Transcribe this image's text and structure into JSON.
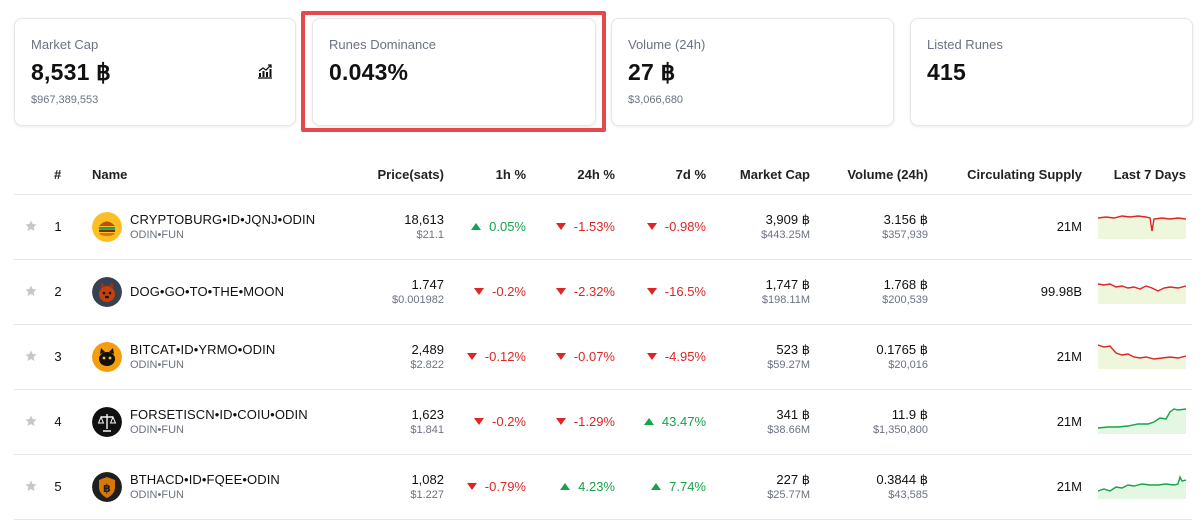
{
  "stats": {
    "market_cap": {
      "label": "Market Cap",
      "value": "8,531 ฿",
      "sub": "$967,389,553",
      "icon": "chart-icon"
    },
    "dominance": {
      "label": "Runes Dominance",
      "value": "0.043%"
    },
    "volume": {
      "label": "Volume (24h)",
      "value": "27 ฿",
      "sub": "$3,066,680"
    },
    "listed": {
      "label": "Listed Runes",
      "value": "415"
    }
  },
  "table": {
    "headers": {
      "rank": "#",
      "name": "Name",
      "price": "Price(sats)",
      "h1": "1h %",
      "h24": "24h %",
      "d7": "7d %",
      "mcap": "Market Cap",
      "volume": "Volume (24h)",
      "supply": "Circulating Supply",
      "last7": "Last 7 Days"
    },
    "rows": [
      {
        "rank": "1",
        "name": "CRYPTOBURG•ID•JQNJ•ODIN",
        "sub": "ODIN•FUN",
        "price": "18,613",
        "price_usd": "$21.1",
        "h1": "0.05%",
        "h24": "-1.53%",
        "d7": "-0.98%",
        "mcap": "3,909 ฿",
        "mcap_usd": "$443.25M",
        "vol": "3.156 ฿",
        "vol_usd": "$357,939",
        "supply": "21M",
        "trend": "down",
        "icon": "burger-icon",
        "h1_dir": "up",
        "h24_dir": "down",
        "d7_dir": "down"
      },
      {
        "rank": "2",
        "name": "DOG•GO•TO•THE•MOON",
        "sub": "",
        "price": "1.747",
        "price_usd": "$0.001982",
        "h1": "-0.2%",
        "h24": "-2.32%",
        "d7": "-16.5%",
        "mcap": "1,747 ฿",
        "mcap_usd": "$198.11M",
        "vol": "1.768 ฿",
        "vol_usd": "$200,539",
        "supply": "99.98B",
        "trend": "down",
        "icon": "dog-icon",
        "h1_dir": "down",
        "h24_dir": "down",
        "d7_dir": "down"
      },
      {
        "rank": "3",
        "name": "BITCAT•ID•YRMO•ODIN",
        "sub": "ODIN•FUN",
        "price": "2,489",
        "price_usd": "$2.822",
        "h1": "-0.12%",
        "h24": "-0.07%",
        "d7": "-4.95%",
        "mcap": "523 ฿",
        "mcap_usd": "$59.27M",
        "vol": "0.1765 ฿",
        "vol_usd": "$20,016",
        "supply": "21M",
        "trend": "down",
        "icon": "cat-icon",
        "h1_dir": "down",
        "h24_dir": "down",
        "d7_dir": "down"
      },
      {
        "rank": "4",
        "name": "FORSETISCN•ID•COIU•ODIN",
        "sub": "ODIN•FUN",
        "price": "1,623",
        "price_usd": "$1.841",
        "h1": "-0.2%",
        "h24": "-1.29%",
        "d7": "43.47%",
        "mcap": "341 ฿",
        "mcap_usd": "$38.66M",
        "vol": "11.9 ฿",
        "vol_usd": "$1,350,800",
        "supply": "21M",
        "trend": "up",
        "icon": "scales-icon",
        "h1_dir": "down",
        "h24_dir": "down",
        "d7_dir": "up"
      },
      {
        "rank": "5",
        "name": "BTHACD•ID•FQEE•ODIN",
        "sub": "ODIN•FUN",
        "price": "1,082",
        "price_usd": "$1.227",
        "h1": "-0.79%",
        "h24": "4.23%",
        "d7": "7.74%",
        "mcap": "227 ฿",
        "mcap_usd": "$25.77M",
        "vol": "0.3844 ฿",
        "vol_usd": "$43,585",
        "supply": "21M",
        "trend": "up",
        "icon": "bitcoin-shield-icon",
        "h1_dir": "down",
        "h24_dir": "up",
        "d7_dir": "up"
      }
    ]
  },
  "colors": {
    "up": "#16a34a",
    "down": "#dc2626",
    "highlight": "#e5484d",
    "spark_up_fill": "#e3f7e3",
    "spark_down_fill": "#eef7dc"
  }
}
